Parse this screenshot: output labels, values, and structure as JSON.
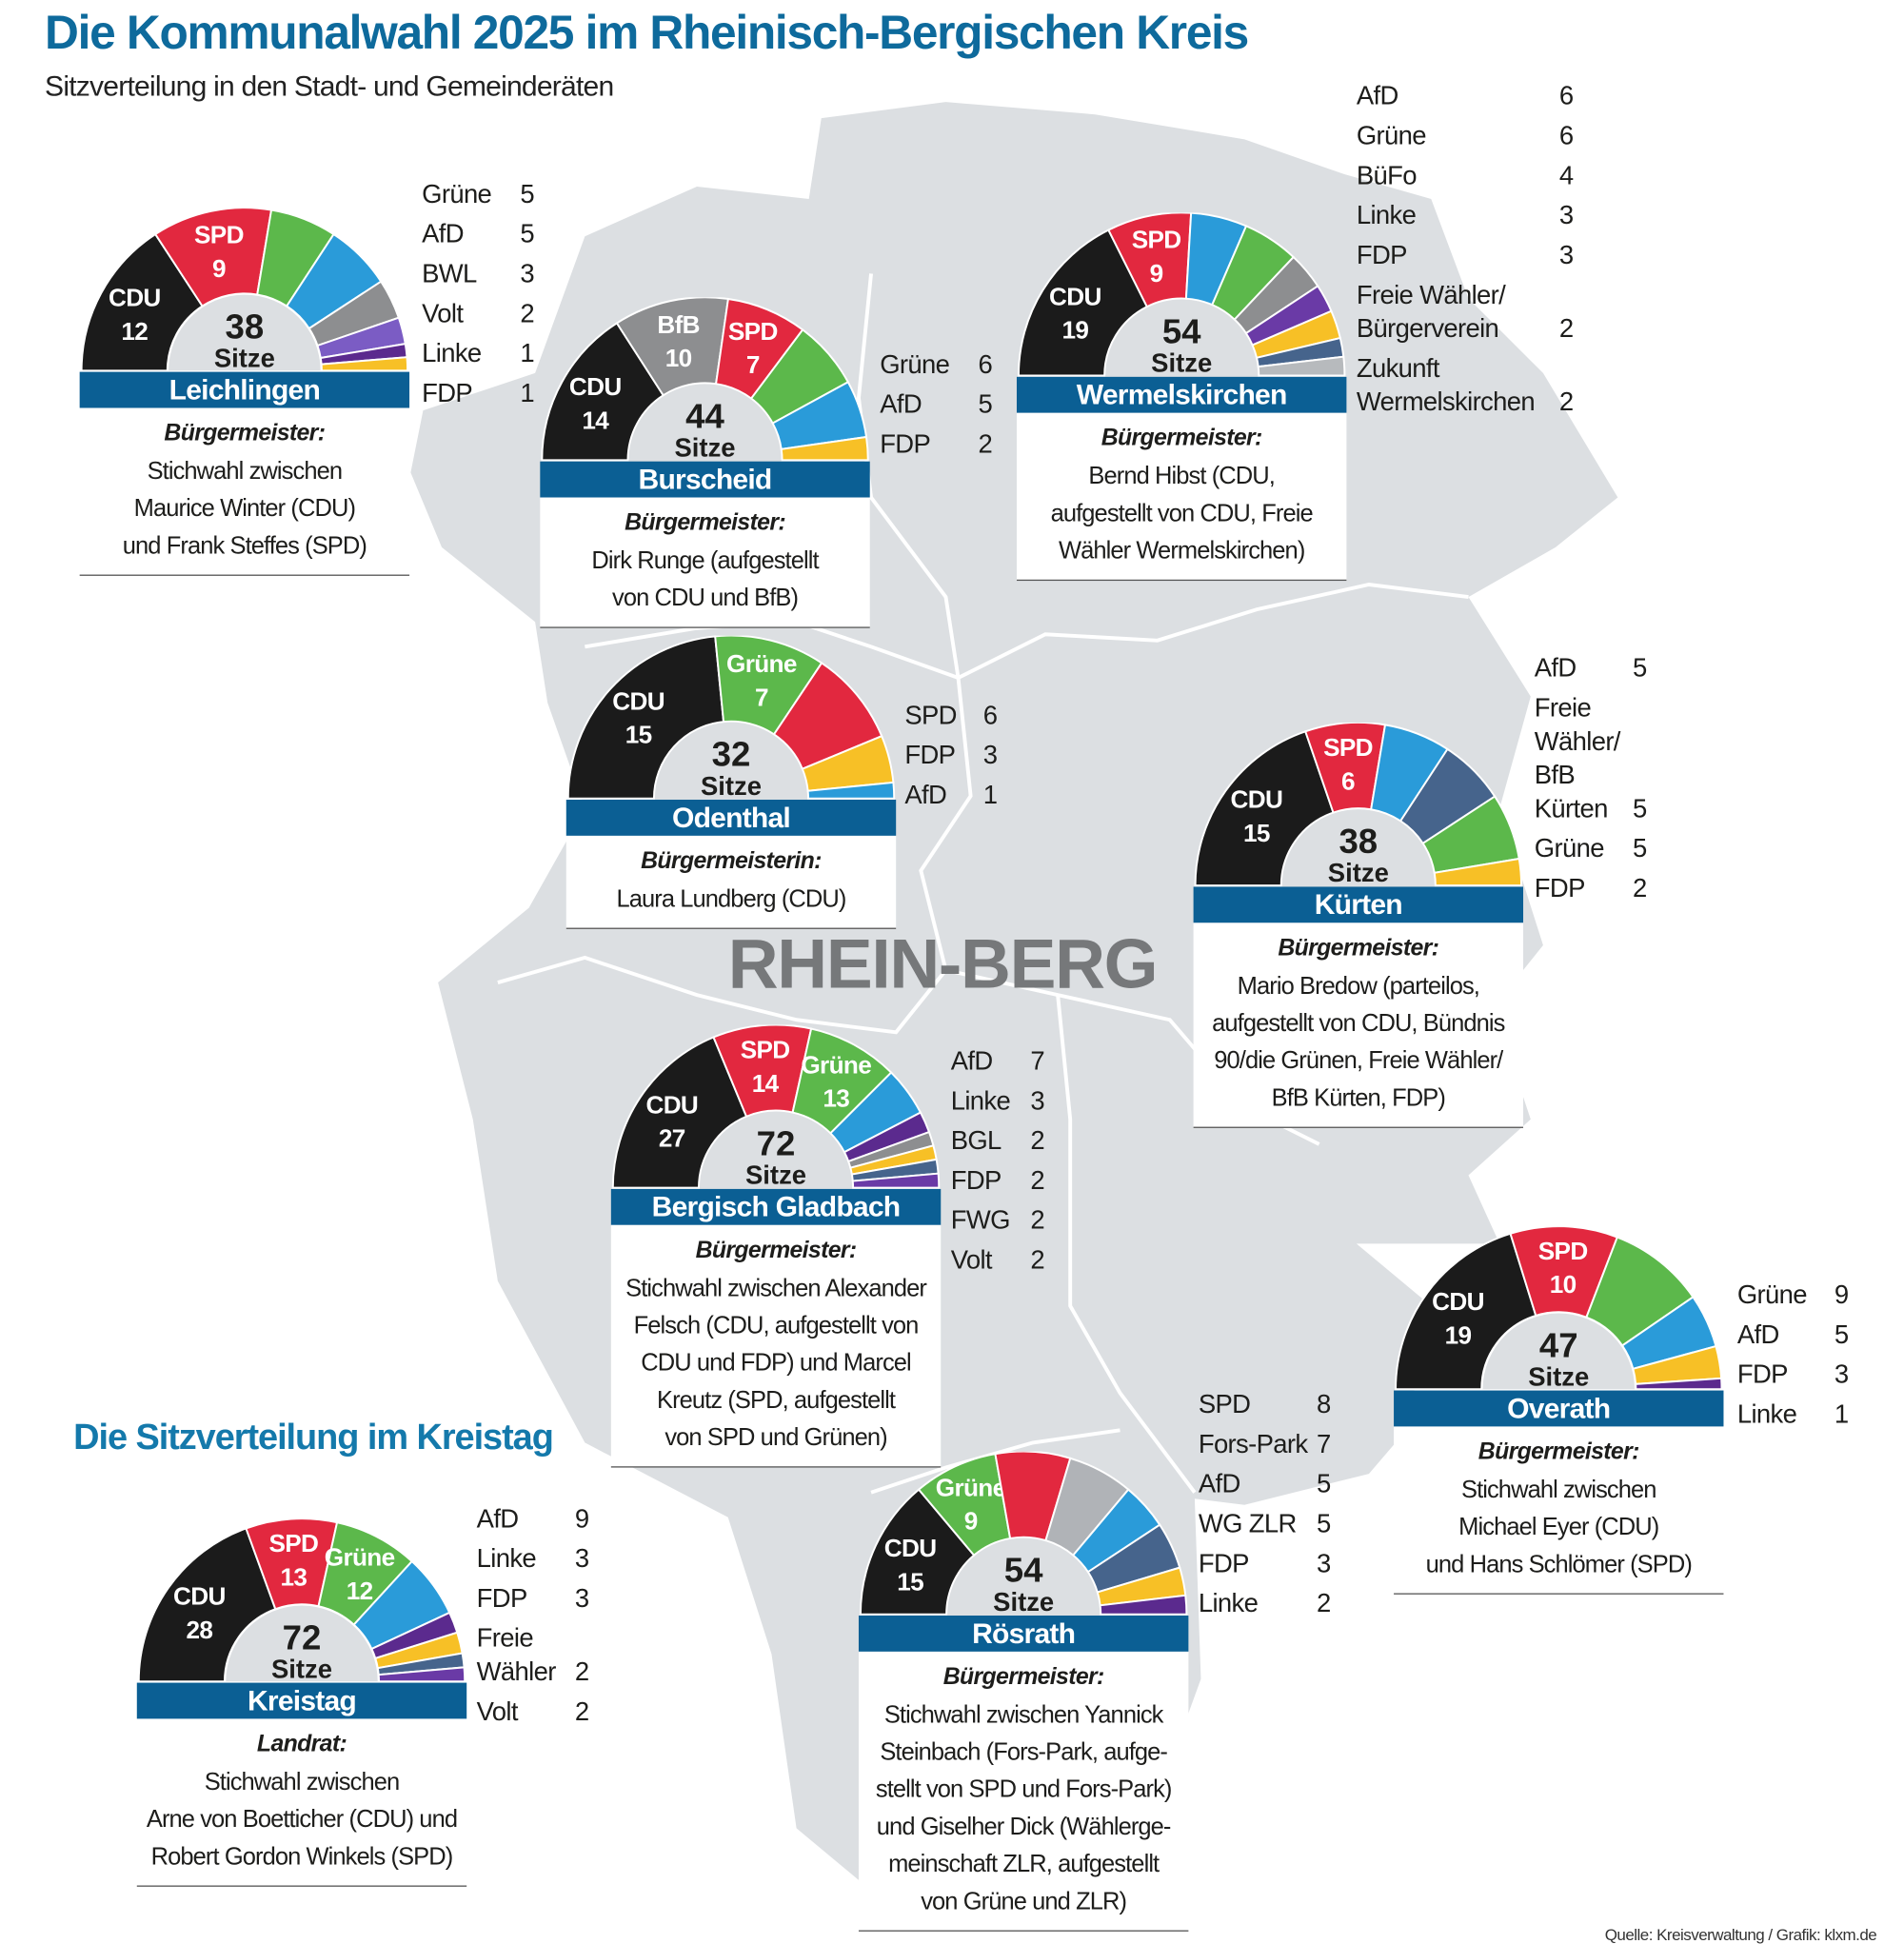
{
  "header": {
    "title": "Die Kommunalwahl 2025 im Rheinisch-Bergischen Kreis",
    "subtitle": "Sitzverteilung in den Stadt- und Gemeinderäten"
  },
  "map": {
    "region_label": "RHEIN-BERG",
    "fill_color": "#dcdfe2"
  },
  "kreistag_heading": "Die Sitzverteilung im Kreistag",
  "footer": "Quelle: Kreisverwaltung / Grafik: klxm.de",
  "colors": {
    "CDU": "#1b1b1b",
    "SPD": "#e2283f",
    "Grüne": "#5cb84b",
    "AfD": "#2a9bd9",
    "gray": "#8d8e90",
    "purple_light": "#7b5cc4",
    "purple": "#5b2a8e",
    "FDP": "#f7c026",
    "slate": "#46648c",
    "lightgray": "#b7babd",
    "bar": "#0b5f94"
  },
  "seats_word": "Sitze",
  "panels": [
    {
      "name": "Leichlingen",
      "total": 38,
      "role": "Bürgermeister:",
      "lines": "Stichwahl zwischen\nMaurice Winter (CDU)\nund Frank Steffes (SPD)",
      "segments": [
        {
          "party": "CDU",
          "seats": 12,
          "color": "#1b1b1b",
          "label": true
        },
        {
          "party": "SPD",
          "seats": 9,
          "color": "#e2283f",
          "label": true
        },
        {
          "party": "Grüne",
          "seats": 5,
          "color": "#5cb84b"
        },
        {
          "party": "AfD",
          "seats": 5,
          "color": "#2a9bd9"
        },
        {
          "party": "BWL",
          "seats": 3,
          "color": "#8d8e90"
        },
        {
          "party": "Volt",
          "seats": 2,
          "color": "#7b5cc4"
        },
        {
          "party": "Linke",
          "seats": 1,
          "color": "#5b2a8e"
        },
        {
          "party": "FDP",
          "seats": 1,
          "color": "#f7c026"
        }
      ],
      "legend": [
        {
          "party": "Grüne",
          "seats": 5
        },
        {
          "party": "AfD",
          "seats": 5
        },
        {
          "party": "BWL",
          "seats": 3
        },
        {
          "party": "Volt",
          "seats": 2
        },
        {
          "party": "Linke",
          "seats": 1
        },
        {
          "party": "FDP",
          "seats": 1
        }
      ]
    },
    {
      "name": "Burscheid",
      "total": 44,
      "role": "Bürgermeister:",
      "lines": "Dirk Runge (aufgestellt\nvon CDU und BfB)",
      "segments": [
        {
          "party": "CDU",
          "seats": 14,
          "color": "#1b1b1b",
          "label": true
        },
        {
          "party": "BfB",
          "seats": 10,
          "color": "#8d8e90",
          "label": true
        },
        {
          "party": "SPD",
          "seats": 7,
          "color": "#e2283f",
          "label": true
        },
        {
          "party": "Grüne",
          "seats": 6,
          "color": "#5cb84b"
        },
        {
          "party": "AfD",
          "seats": 5,
          "color": "#2a9bd9"
        },
        {
          "party": "FDP",
          "seats": 2,
          "color": "#f7c026"
        }
      ],
      "legend": [
        {
          "party": "Grüne",
          "seats": 6
        },
        {
          "party": "AfD",
          "seats": 5
        },
        {
          "party": "FDP",
          "seats": 2
        }
      ]
    },
    {
      "name": "Wermelskirchen",
      "total": 54,
      "role": "Bürgermeister:",
      "lines": "Bernd Hibst (CDU,\naufgestellt von CDU, Freie\nWähler Wermelskirchen)",
      "segments": [
        {
          "party": "CDU",
          "seats": 19,
          "color": "#1b1b1b",
          "label": true
        },
        {
          "party": "SPD",
          "seats": 9,
          "color": "#e2283f",
          "label": true
        },
        {
          "party": "AfD",
          "seats": 6,
          "color": "#2a9bd9"
        },
        {
          "party": "Grüne",
          "seats": 6,
          "color": "#5cb84b"
        },
        {
          "party": "BüFo",
          "seats": 4,
          "color": "#8d8e90"
        },
        {
          "party": "Linke",
          "seats": 3,
          "color": "#6a3aa6"
        },
        {
          "party": "FDP",
          "seats": 3,
          "color": "#f7c026"
        },
        {
          "party": "Freie Wähler/ Bürgerverein",
          "seats": 2,
          "color": "#46648c"
        },
        {
          "party": "Zukunft Wermelskirchen",
          "seats": 2,
          "color": "#b7babd"
        }
      ],
      "legend": [
        {
          "party": "AfD",
          "seats": 6
        },
        {
          "party": "Grüne",
          "seats": 6
        },
        {
          "party": "BüFo",
          "seats": 4
        },
        {
          "party": "Linke",
          "seats": 3
        },
        {
          "party": "FDP",
          "seats": 3
        },
        {
          "party": "Freie Wähler/\nBürgerverein",
          "seats": 2
        },
        {
          "party": "Zukunft\nWermelskirchen",
          "seats": 2
        }
      ]
    },
    {
      "name": "Odenthal",
      "total": 32,
      "role": "Bürgermeisterin:",
      "lines": "Laura Lundberg (CDU)",
      "segments": [
        {
          "party": "CDU",
          "seats": 15,
          "color": "#1b1b1b",
          "label": true
        },
        {
          "party": "Grüne",
          "seats": 7,
          "color": "#5cb84b",
          "label": true,
          "text_color": "#eaf6d8"
        },
        {
          "party": "SPD",
          "seats": 6,
          "color": "#e2283f"
        },
        {
          "party": "FDP",
          "seats": 3,
          "color": "#f7c026"
        },
        {
          "party": "AfD",
          "seats": 1,
          "color": "#2a9bd9"
        }
      ],
      "legend": [
        {
          "party": "SPD",
          "seats": 6
        },
        {
          "party": "FDP",
          "seats": 3
        },
        {
          "party": "AfD",
          "seats": 1
        }
      ]
    },
    {
      "name": "Kürten",
      "total": 38,
      "role": "Bürgermeister:",
      "lines": "Mario Bredow (parteilos,\naufgestellt von CDU, Bündnis\n90/die Grünen, Freie Wähler/\nBfB Kürten, FDP)",
      "segments": [
        {
          "party": "CDU",
          "seats": 15,
          "color": "#1b1b1b",
          "label": true
        },
        {
          "party": "SPD",
          "seats": 6,
          "color": "#e2283f",
          "label": true
        },
        {
          "party": "AfD",
          "seats": 5,
          "color": "#2a9bd9"
        },
        {
          "party": "Freie Wähler/ BfB Kürten",
          "seats": 5,
          "color": "#46648c"
        },
        {
          "party": "Grüne",
          "seats": 5,
          "color": "#5cb84b"
        },
        {
          "party": "FDP",
          "seats": 2,
          "color": "#f7c026"
        }
      ],
      "legend": [
        {
          "party": "AfD",
          "seats": 5
        },
        {
          "party": "Freie\nWähler/\nBfB\nKürten",
          "seats": 5
        },
        {
          "party": "Grüne",
          "seats": 5
        },
        {
          "party": "FDP",
          "seats": 2
        }
      ]
    },
    {
      "name": "Bergisch Gladbach",
      "total": 72,
      "role": "Bürgermeister:",
      "lines": "Stichwahl zwischen Alexander\nFelsch (CDU, aufgestellt von\nCDU und FDP) und Marcel\nKreutz (SPD, aufgestellt\nvon SPD und Grünen)",
      "segments": [
        {
          "party": "CDU",
          "seats": 27,
          "color": "#1b1b1b",
          "label": true
        },
        {
          "party": "SPD",
          "seats": 14,
          "color": "#e2283f",
          "label": true
        },
        {
          "party": "Grüne",
          "seats": 13,
          "color": "#5cb84b",
          "label": true,
          "text_color": "#eaf6d8"
        },
        {
          "party": "AfD",
          "seats": 7,
          "color": "#2a9bd9"
        },
        {
          "party": "Linke",
          "seats": 3,
          "color": "#5b2a8e"
        },
        {
          "party": "BGL",
          "seats": 2,
          "color": "#8d8e90"
        },
        {
          "party": "FDP",
          "seats": 2,
          "color": "#f7c026"
        },
        {
          "party": "FWG",
          "seats": 2,
          "color": "#46648c"
        },
        {
          "party": "Volt",
          "seats": 2,
          "color": "#6a3aa6"
        }
      ],
      "legend": [
        {
          "party": "AfD",
          "seats": 7
        },
        {
          "party": "Linke",
          "seats": 3
        },
        {
          "party": "BGL",
          "seats": 2
        },
        {
          "party": "FDP",
          "seats": 2
        },
        {
          "party": "FWG",
          "seats": 2
        },
        {
          "party": "Volt",
          "seats": 2
        }
      ]
    },
    {
      "name": "Overath",
      "total": 47,
      "role": "Bürgermeister:",
      "lines": "Stichwahl zwischen\nMichael Eyer (CDU)\nund Hans Schlömer (SPD)",
      "segments": [
        {
          "party": "CDU",
          "seats": 19,
          "color": "#1b1b1b",
          "label": true
        },
        {
          "party": "SPD",
          "seats": 10,
          "color": "#e2283f",
          "label": true
        },
        {
          "party": "Grüne",
          "seats": 9,
          "color": "#5cb84b"
        },
        {
          "party": "AfD",
          "seats": 5,
          "color": "#2a9bd9"
        },
        {
          "party": "FDP",
          "seats": 3,
          "color": "#f7c026"
        },
        {
          "party": "Linke",
          "seats": 1,
          "color": "#5b2a8e"
        }
      ],
      "legend": [
        {
          "party": "Grüne",
          "seats": 9
        },
        {
          "party": "AfD",
          "seats": 5
        },
        {
          "party": "FDP",
          "seats": 3
        },
        {
          "party": "Linke",
          "seats": 1
        }
      ]
    },
    {
      "name": "Rösrath",
      "total": 54,
      "role": "Bürgermeister:",
      "lines": "Stichwahl zwischen Yannick\nSteinbach (Fors-Park, aufge-\nstellt von SPD und Fors-Park)\nund Giselher Dick (Wählerge-\nmeinschaft ZLR, aufgestellt\nvon Grüne und ZLR)",
      "segments": [
        {
          "party": "CDU",
          "seats": 15,
          "color": "#1b1b1b",
          "label": true
        },
        {
          "party": "Grüne",
          "seats": 9,
          "color": "#5cb84b",
          "label": true,
          "text_color": "#eaf6d8"
        },
        {
          "party": "SPD",
          "seats": 8,
          "color": "#e2283f"
        },
        {
          "party": "Fors-Park",
          "seats": 7,
          "color": "#b0b3b7"
        },
        {
          "party": "AfD",
          "seats": 5,
          "color": "#2a9bd9"
        },
        {
          "party": "WG ZLR",
          "seats": 5,
          "color": "#46648c"
        },
        {
          "party": "FDP",
          "seats": 3,
          "color": "#f7c026"
        },
        {
          "party": "Linke",
          "seats": 2,
          "color": "#5b2a8e"
        }
      ],
      "legend": [
        {
          "party": "SPD",
          "seats": 8
        },
        {
          "party": "Fors-Park",
          "seats": 7
        },
        {
          "party": "AfD",
          "seats": 5
        },
        {
          "party": "WG ZLR",
          "seats": 5
        },
        {
          "party": "FDP",
          "seats": 3
        },
        {
          "party": "Linke",
          "seats": 2
        }
      ]
    },
    {
      "name": "Kreistag",
      "total": 72,
      "role": "Landrat:",
      "lines": "Stichwahl zwischen\nArne von Boetticher (CDU) und\nRobert Gordon Winkels (SPD)",
      "segments": [
        {
          "party": "CDU",
          "seats": 28,
          "color": "#1b1b1b",
          "label": true
        },
        {
          "party": "SPD",
          "seats": 13,
          "color": "#e2283f",
          "label": true
        },
        {
          "party": "Grüne",
          "seats": 12,
          "color": "#5cb84b",
          "label": true,
          "text_color": "#eaf6d8"
        },
        {
          "party": "AfD",
          "seats": 9,
          "color": "#2a9bd9"
        },
        {
          "party": "Linke",
          "seats": 3,
          "color": "#5b2a8e"
        },
        {
          "party": "FDP",
          "seats": 3,
          "color": "#f7c026"
        },
        {
          "party": "Freie Wähler",
          "seats": 2,
          "color": "#46648c"
        },
        {
          "party": "Volt",
          "seats": 2,
          "color": "#6a3aa6"
        }
      ],
      "legend": [
        {
          "party": "AfD",
          "seats": 9
        },
        {
          "party": "Linke",
          "seats": 3
        },
        {
          "party": "FDP",
          "seats": 3
        },
        {
          "party": "Freie\nWähler",
          "seats": 2
        },
        {
          "party": "Volt",
          "seats": 2
        }
      ]
    }
  ]
}
